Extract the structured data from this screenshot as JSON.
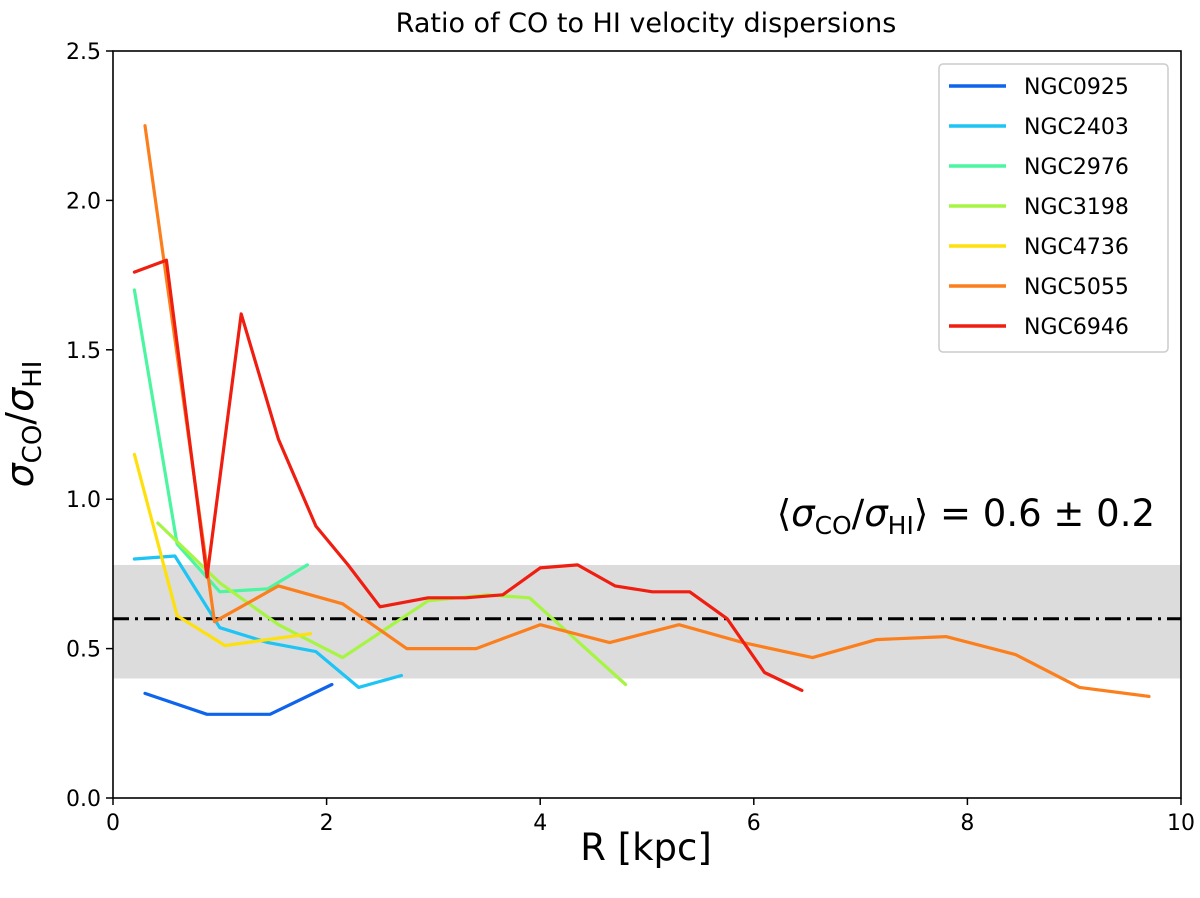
{
  "chart_data": {
    "type": "line",
    "title": "Ratio of CO to HI velocity dispersions",
    "xlabel": "R [kpc]",
    "ylabel": {
      "base": "σ",
      "sub1": "CO",
      "sep": "/",
      "base2": "σ",
      "sub2": "HI"
    },
    "xlim": [
      0,
      10
    ],
    "ylim": [
      0,
      2.5
    ],
    "xticks": [
      0,
      2,
      4,
      6,
      8,
      10
    ],
    "xtick_labels": [
      "0",
      "2",
      "4",
      "6",
      "8",
      "10"
    ],
    "yticks": [
      0,
      0.5,
      1.0,
      1.5,
      2.0,
      2.5
    ],
    "ytick_labels": [
      "0.0",
      "0.5",
      "1.0",
      "1.5",
      "2.0",
      "2.5"
    ],
    "legend_position": "top-right",
    "reference": {
      "mean": 0.6,
      "band": [
        0.4,
        0.78
      ],
      "line_style": "dash-dot",
      "band_color": "#dcdcdc",
      "line_color": "#000000",
      "annotation": {
        "open": "⟨",
        "base": "σ",
        "sub1": "CO",
        "sep": "/",
        "base2": "σ",
        "sub2": "HI",
        "close": "⟩",
        "rest": " = 0.6 ± 0.2"
      }
    },
    "series": [
      {
        "name": "NGC0925",
        "color": "#0f64ec",
        "x": [
          0.3,
          0.88,
          1.17,
          1.47,
          2.05
        ],
        "y": [
          0.35,
          0.28,
          0.28,
          0.28,
          0.38
        ]
      },
      {
        "name": "NGC2403",
        "color": "#1ec4f4",
        "x": [
          0.2,
          0.58,
          1.0,
          1.45,
          1.9,
          2.3,
          2.7
        ],
        "y": [
          0.8,
          0.81,
          0.57,
          0.52,
          0.49,
          0.37,
          0.41
        ]
      },
      {
        "name": "NGC2976",
        "color": "#4cf5a0",
        "x": [
          0.2,
          0.6,
          1.0,
          1.45,
          1.82
        ],
        "y": [
          1.7,
          0.85,
          0.69,
          0.7,
          0.78
        ]
      },
      {
        "name": "NGC3198",
        "color": "#a6f543",
        "x": [
          0.42,
          1.0,
          1.55,
          2.15,
          2.95,
          3.5,
          3.9,
          4.8
        ],
        "y": [
          0.92,
          0.72,
          0.58,
          0.47,
          0.66,
          0.68,
          0.67,
          0.38
        ]
      },
      {
        "name": "NGC4736",
        "color": "#fde00c",
        "x": [
          0.2,
          0.6,
          1.05,
          1.45,
          1.85
        ],
        "y": [
          1.15,
          0.61,
          0.51,
          0.53,
          0.55
        ]
      },
      {
        "name": "NGC5055",
        "color": "#fc7f1d",
        "x": [
          0.3,
          0.95,
          1.55,
          2.15,
          2.75,
          3.4,
          4.0,
          4.65,
          5.3,
          5.9,
          6.55,
          7.15,
          7.8,
          8.45,
          9.05,
          9.7
        ],
        "y": [
          2.25,
          0.59,
          0.71,
          0.65,
          0.5,
          0.5,
          0.58,
          0.52,
          0.58,
          0.52,
          0.47,
          0.53,
          0.54,
          0.48,
          0.37,
          0.34
        ]
      },
      {
        "name": "NGC6946",
        "color": "#ef1e10",
        "x": [
          0.2,
          0.5,
          0.88,
          1.2,
          1.55,
          1.9,
          2.2,
          2.5,
          2.95,
          3.3,
          3.65,
          4.0,
          4.35,
          4.7,
          5.05,
          5.4,
          5.75,
          6.1,
          6.45
        ],
        "y": [
          1.76,
          1.8,
          0.74,
          1.62,
          1.2,
          0.91,
          0.78,
          0.64,
          0.67,
          0.67,
          0.68,
          0.77,
          0.78,
          0.71,
          0.69,
          0.69,
          0.6,
          0.42,
          0.36
        ]
      }
    ]
  }
}
